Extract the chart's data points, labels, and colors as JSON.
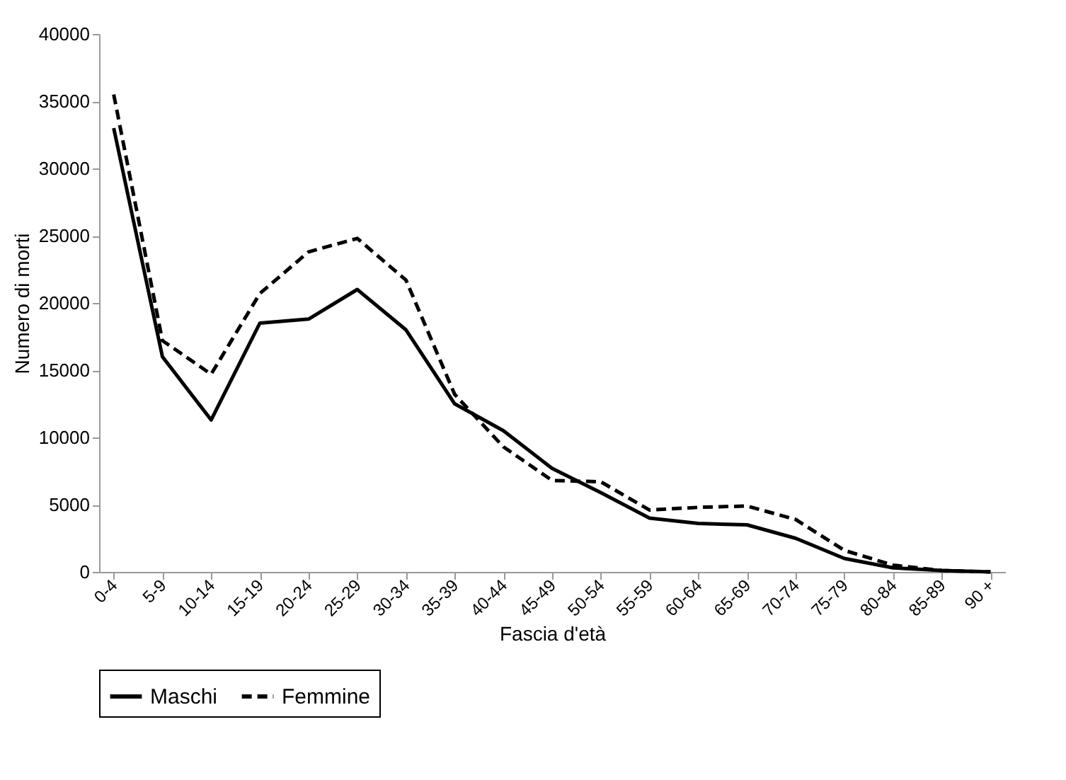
{
  "chart_data": {
    "type": "line",
    "xlabel": "Fascia d'età",
    "ylabel": "Numero di morti",
    "categories": [
      "0-4",
      "5-9",
      "10-14",
      "15-19",
      "20-24",
      "25-29",
      "30-34",
      "35-39",
      "40-44",
      "45-49",
      "50-54",
      "55-59",
      "60-64",
      "65-69",
      "70-74",
      "75-79",
      "80-84",
      "85-89",
      "90 +"
    ],
    "series": [
      {
        "name": "Maschi",
        "color": "#000000",
        "line_style": "solid",
        "values": [
          33000,
          16000,
          11300,
          18500,
          18800,
          21000,
          18000,
          12500,
          10500,
          7700,
          5900,
          4000,
          3600,
          3500,
          2500,
          1000,
          300,
          100,
          0
        ]
      },
      {
        "name": "Femmine",
        "color": "#000000",
        "line_style": "dashed",
        "values": [
          35500,
          17200,
          14700,
          20700,
          23800,
          24800,
          21700,
          13200,
          9300,
          6800,
          6700,
          4600,
          4800,
          4900,
          3900,
          1600,
          500,
          100,
          0
        ]
      }
    ],
    "ylim": [
      0,
      40000
    ],
    "yticks": [
      0,
      5000,
      10000,
      15000,
      20000,
      25000,
      30000,
      35000,
      40000
    ],
    "grid": false,
    "legend": "bottom",
    "marker": "none"
  }
}
